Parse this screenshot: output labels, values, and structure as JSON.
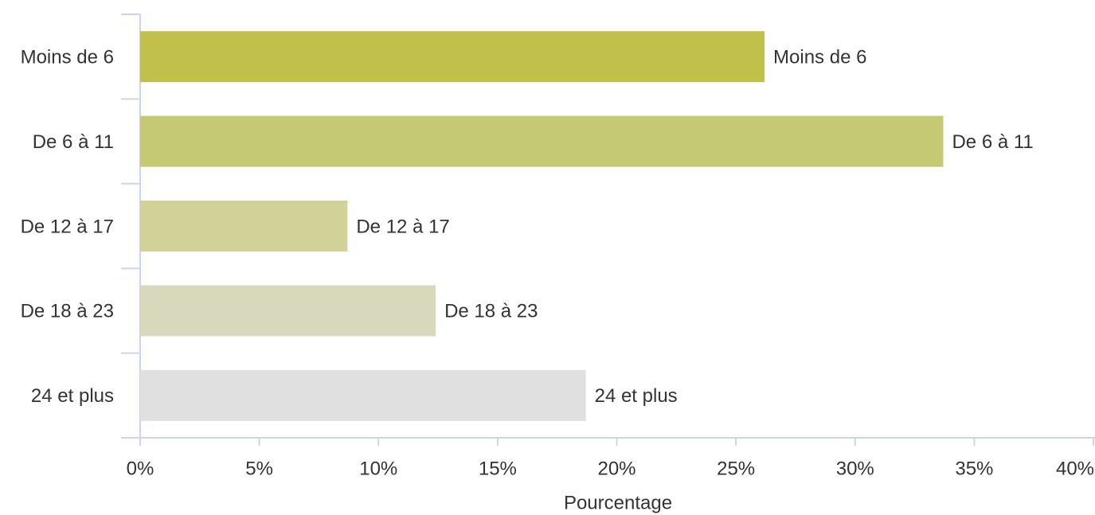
{
  "chart_data": {
    "type": "bar",
    "orientation": "horizontal",
    "categories": [
      "Moins de 6",
      "De 6 à 11",
      "De 12 à 17",
      "De 18 à 23",
      "24 et plus"
    ],
    "values": [
      26.2,
      33.7,
      8.7,
      12.4,
      18.7
    ],
    "colors": [
      "#c0c04a",
      "#c6c973",
      "#d0d297",
      "#d8d9bc",
      "#e0e0e0"
    ],
    "x_label": "Pourcentage",
    "xlim": [
      0,
      40
    ],
    "xticks": [
      {
        "value": 0,
        "label": "0%"
      },
      {
        "value": 5,
        "label": "5%"
      },
      {
        "value": 10,
        "label": "10%"
      },
      {
        "value": 15,
        "label": "15%"
      },
      {
        "value": 20,
        "label": "20%"
      },
      {
        "value": 25,
        "label": "25%"
      },
      {
        "value": 30,
        "label": "30%"
      },
      {
        "value": 35,
        "label": "35%"
      },
      {
        "value": 40,
        "label": "40%"
      }
    ]
  }
}
